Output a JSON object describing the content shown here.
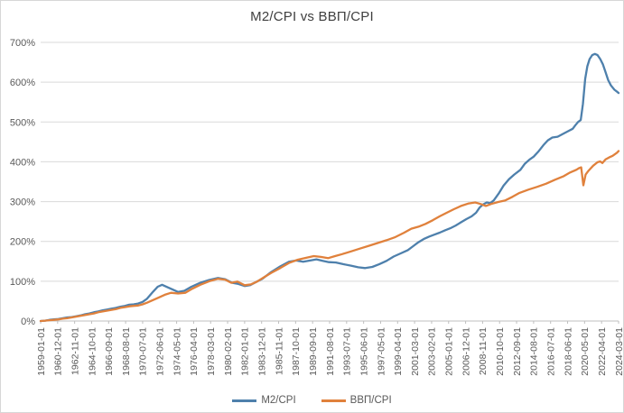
{
  "chart_data": {
    "type": "line",
    "title": "M2/CPI vs ВВП/CPI",
    "xlabel": "",
    "ylabel": "",
    "ylim": [
      0,
      700
    ],
    "x_range_years": [
      1959.0,
      2024.17
    ],
    "grid": "horizontal-only",
    "legend_position": "bottom-center",
    "y_ticks": [
      0,
      100,
      200,
      300,
      400,
      500,
      600,
      700
    ],
    "y_tick_labels": [
      "0%",
      "100%",
      "200%",
      "300%",
      "400%",
      "500%",
      "600%",
      "700%"
    ],
    "x_tick_labels": [
      "1959-01-01",
      "1960-12-01",
      "1962-11-01",
      "1964-10-01",
      "1966-09-01",
      "1968-08-01",
      "1970-07-01",
      "1972-06-01",
      "1974-05-01",
      "1976-04-01",
      "1978-03-01",
      "1980-02-01",
      "1982-01-01",
      "1983-12-01",
      "1985-11-01",
      "1987-10-01",
      "1989-09-01",
      "1991-08-01",
      "1993-07-01",
      "1995-06-01",
      "1997-05-01",
      "1999-04-01",
      "2001-03-01",
      "2003-02-01",
      "2005-01-01",
      "2006-12-01",
      "2008-11-01",
      "2010-10-01",
      "2012-09-01",
      "2014-08-01",
      "2016-07-01",
      "2018-06-01",
      "2020-05-01",
      "2022-04-01",
      "2024-03-01"
    ],
    "colors": {
      "text": "#595959",
      "gridline": "#d9d9d9",
      "axis": "#bfbfbf"
    },
    "units": {
      "x": "date (fractional year)",
      "y": "percent"
    },
    "series": [
      {
        "name": "M2/CPI",
        "color": "#4e80ac",
        "points": [
          [
            1959.0,
            0
          ],
          [
            1959.5,
            1
          ],
          [
            1960.0,
            3
          ],
          [
            1960.5,
            4
          ],
          [
            1961.0,
            5
          ],
          [
            1961.5,
            7
          ],
          [
            1962.0,
            9
          ],
          [
            1962.5,
            10
          ],
          [
            1963.0,
            12
          ],
          [
            1963.5,
            14
          ],
          [
            1964.0,
            17
          ],
          [
            1964.5,
            19
          ],
          [
            1965.0,
            22
          ],
          [
            1965.5,
            24
          ],
          [
            1966.0,
            27
          ],
          [
            1966.5,
            29
          ],
          [
            1967.0,
            31
          ],
          [
            1967.5,
            33
          ],
          [
            1968.0,
            36
          ],
          [
            1968.5,
            38
          ],
          [
            1969.0,
            41
          ],
          [
            1969.5,
            42
          ],
          [
            1970.0,
            44
          ],
          [
            1970.5,
            48
          ],
          [
            1971.0,
            56
          ],
          [
            1971.7,
            74
          ],
          [
            1972.2,
            86
          ],
          [
            1972.7,
            91
          ],
          [
            1973.4,
            84
          ],
          [
            1974.0,
            78
          ],
          [
            1974.5,
            73
          ],
          [
            1975.2,
            76
          ],
          [
            1976.0,
            86
          ],
          [
            1977.0,
            96
          ],
          [
            1978.0,
            103
          ],
          [
            1979.0,
            108
          ],
          [
            1979.8,
            105
          ],
          [
            1980.6,
            96
          ],
          [
            1981.3,
            93
          ],
          [
            1982.0,
            88
          ],
          [
            1982.6,
            90
          ],
          [
            1983.2,
            97
          ],
          [
            1984.0,
            106
          ],
          [
            1985.0,
            123
          ],
          [
            1986.0,
            137
          ],
          [
            1987.0,
            149
          ],
          [
            1987.8,
            152
          ],
          [
            1988.6,
            149
          ],
          [
            1989.4,
            152
          ],
          [
            1990.1,
            155
          ],
          [
            1990.8,
            151
          ],
          [
            1991.5,
            148
          ],
          [
            1992.3,
            147
          ],
          [
            1993.1,
            143
          ],
          [
            1994.0,
            139
          ],
          [
            1994.8,
            135
          ],
          [
            1995.6,
            133
          ],
          [
            1996.4,
            136
          ],
          [
            1997.2,
            143
          ],
          [
            1998.0,
            151
          ],
          [
            1998.8,
            162
          ],
          [
            1999.6,
            170
          ],
          [
            2000.4,
            178
          ],
          [
            2001.0,
            188
          ],
          [
            2001.6,
            198
          ],
          [
            2002.2,
            206
          ],
          [
            2002.8,
            212
          ],
          [
            2003.4,
            217
          ],
          [
            2004.0,
            222
          ],
          [
            2004.6,
            228
          ],
          [
            2005.2,
            233
          ],
          [
            2005.8,
            240
          ],
          [
            2006.4,
            248
          ],
          [
            2007.0,
            256
          ],
          [
            2007.6,
            263
          ],
          [
            2008.1,
            272
          ],
          [
            2008.5,
            285
          ],
          [
            2008.9,
            293
          ],
          [
            2009.3,
            298
          ],
          [
            2009.7,
            296
          ],
          [
            2010.1,
            303
          ],
          [
            2010.7,
            322
          ],
          [
            2011.2,
            340
          ],
          [
            2011.8,
            356
          ],
          [
            2012.4,
            368
          ],
          [
            2013.1,
            380
          ],
          [
            2013.6,
            395
          ],
          [
            2014.1,
            405
          ],
          [
            2014.6,
            413
          ],
          [
            2015.1,
            425
          ],
          [
            2015.7,
            442
          ],
          [
            2016.2,
            454
          ],
          [
            2016.7,
            461
          ],
          [
            2017.3,
            463
          ],
          [
            2017.9,
            470
          ],
          [
            2018.5,
            477
          ],
          [
            2019.0,
            483
          ],
          [
            2019.3,
            492
          ],
          [
            2019.6,
            500
          ],
          [
            2019.9,
            505
          ],
          [
            2020.15,
            545
          ],
          [
            2020.4,
            608
          ],
          [
            2020.65,
            640
          ],
          [
            2020.9,
            658
          ],
          [
            2021.2,
            668
          ],
          [
            2021.5,
            671
          ],
          [
            2021.8,
            668
          ],
          [
            2022.1,
            658
          ],
          [
            2022.4,
            645
          ],
          [
            2022.7,
            625
          ],
          [
            2023.0,
            605
          ],
          [
            2023.3,
            592
          ],
          [
            2023.7,
            581
          ],
          [
            2024.0,
            576
          ],
          [
            2024.17,
            573
          ]
        ]
      },
      {
        "name": "ВВП/CPI",
        "color": "#e0813c",
        "points": [
          [
            1959.0,
            0
          ],
          [
            1959.5,
            1
          ],
          [
            1960.0,
            2
          ],
          [
            1960.5,
            3
          ],
          [
            1961.0,
            4
          ],
          [
            1961.5,
            6
          ],
          [
            1962.0,
            7
          ],
          [
            1962.5,
            9
          ],
          [
            1963.0,
            11
          ],
          [
            1963.5,
            13
          ],
          [
            1964.0,
            15
          ],
          [
            1964.5,
            17
          ],
          [
            1965.0,
            19
          ],
          [
            1965.5,
            22
          ],
          [
            1966.0,
            24
          ],
          [
            1966.5,
            26
          ],
          [
            1967.0,
            28
          ],
          [
            1967.5,
            30
          ],
          [
            1968.0,
            33
          ],
          [
            1968.5,
            35
          ],
          [
            1969.0,
            37
          ],
          [
            1969.5,
            38
          ],
          [
            1970.0,
            39
          ],
          [
            1970.5,
            42
          ],
          [
            1971.0,
            46
          ],
          [
            1972.0,
            56
          ],
          [
            1973.0,
            66
          ],
          [
            1973.7,
            71
          ],
          [
            1974.5,
            69
          ],
          [
            1975.3,
            71
          ],
          [
            1976.0,
            80
          ],
          [
            1977.0,
            91
          ],
          [
            1978.0,
            100
          ],
          [
            1979.0,
            106
          ],
          [
            1979.8,
            104
          ],
          [
            1980.5,
            96
          ],
          [
            1981.2,
            99
          ],
          [
            1982.0,
            90
          ],
          [
            1982.7,
            92
          ],
          [
            1983.4,
            99
          ],
          [
            1984.2,
            110
          ],
          [
            1985.0,
            121
          ],
          [
            1986.0,
            133
          ],
          [
            1987.0,
            146
          ],
          [
            1988.0,
            154
          ],
          [
            1989.0,
            159
          ],
          [
            1989.8,
            163
          ],
          [
            1990.6,
            161
          ],
          [
            1991.4,
            158
          ],
          [
            1992.2,
            163
          ],
          [
            1993.0,
            168
          ],
          [
            1994.0,
            175
          ],
          [
            1995.0,
            182
          ],
          [
            1996.0,
            189
          ],
          [
            1997.0,
            196
          ],
          [
            1998.0,
            203
          ],
          [
            1999.0,
            211
          ],
          [
            2000.0,
            222
          ],
          [
            2000.8,
            232
          ],
          [
            2001.6,
            237
          ],
          [
            2002.4,
            244
          ],
          [
            2003.2,
            253
          ],
          [
            2004.0,
            263
          ],
          [
            2004.8,
            272
          ],
          [
            2005.6,
            281
          ],
          [
            2006.4,
            289
          ],
          [
            2007.2,
            295
          ],
          [
            2008.0,
            298
          ],
          [
            2008.6,
            294
          ],
          [
            2009.2,
            289
          ],
          [
            2009.8,
            294
          ],
          [
            2010.6,
            299
          ],
          [
            2011.4,
            303
          ],
          [
            2012.2,
            312
          ],
          [
            2013.0,
            322
          ],
          [
            2014.0,
            330
          ],
          [
            2015.0,
            337
          ],
          [
            2016.0,
            345
          ],
          [
            2017.0,
            355
          ],
          [
            2018.0,
            364
          ],
          [
            2018.7,
            373
          ],
          [
            2019.4,
            380
          ],
          [
            2019.7,
            384
          ],
          [
            2019.95,
            386
          ],
          [
            2020.2,
            341
          ],
          [
            2020.45,
            368
          ],
          [
            2020.8,
            378
          ],
          [
            2021.3,
            390
          ],
          [
            2021.8,
            399
          ],
          [
            2022.1,
            401
          ],
          [
            2022.35,
            397
          ],
          [
            2022.7,
            406
          ],
          [
            2023.1,
            411
          ],
          [
            2023.5,
            415
          ],
          [
            2024.0,
            423
          ],
          [
            2024.17,
            427
          ]
        ]
      }
    ]
  }
}
